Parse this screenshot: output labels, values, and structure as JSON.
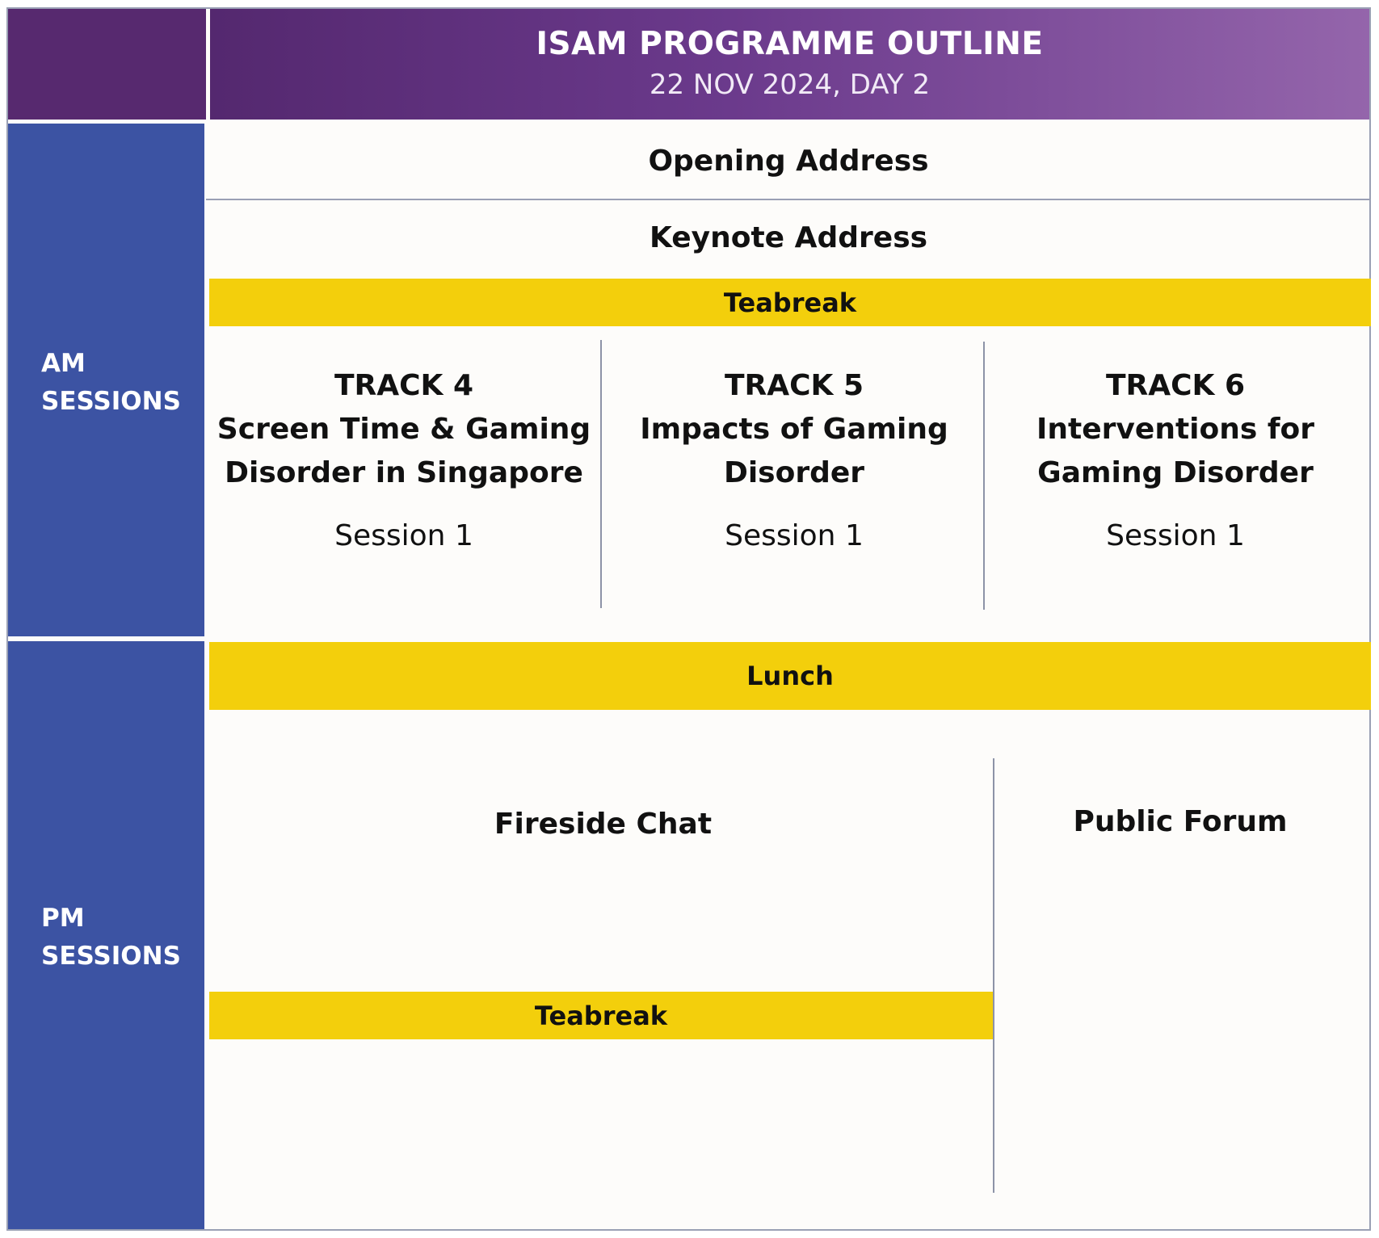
{
  "header": {
    "title": "ISAM PROGRAMME OUTLINE",
    "subtitle": "22 NOV 2024, DAY 2"
  },
  "sidebar": {
    "am_line1": "AM",
    "am_line2": "SESSIONS",
    "pm_line1": "PM",
    "pm_line2": "SESSIONS"
  },
  "am": {
    "opening": "Opening Address",
    "keynote": "Keynote Address",
    "teabreak": "Teabreak",
    "tracks": [
      {
        "track": "TRACK 4",
        "title_line1": "Screen Time & Gaming",
        "title_line2": "Disorder in Singapore",
        "session": "Session 1"
      },
      {
        "track": "TRACK 5",
        "title_line1": "Impacts of Gaming",
        "title_line2": "Disorder",
        "session": "Session 1"
      },
      {
        "track": "TRACK 6",
        "title_line1": "Interventions for",
        "title_line2": "Gaming Disorder",
        "session": "Session 1"
      }
    ]
  },
  "pm": {
    "lunch": "Lunch",
    "fireside": "Fireside Chat",
    "public_forum": "Public Forum",
    "teabreak": "Teabreak"
  },
  "colors": {
    "header_purple": "#57296f",
    "session_blue": "#3c53a3",
    "break_yellow": "#f3cf0c"
  }
}
